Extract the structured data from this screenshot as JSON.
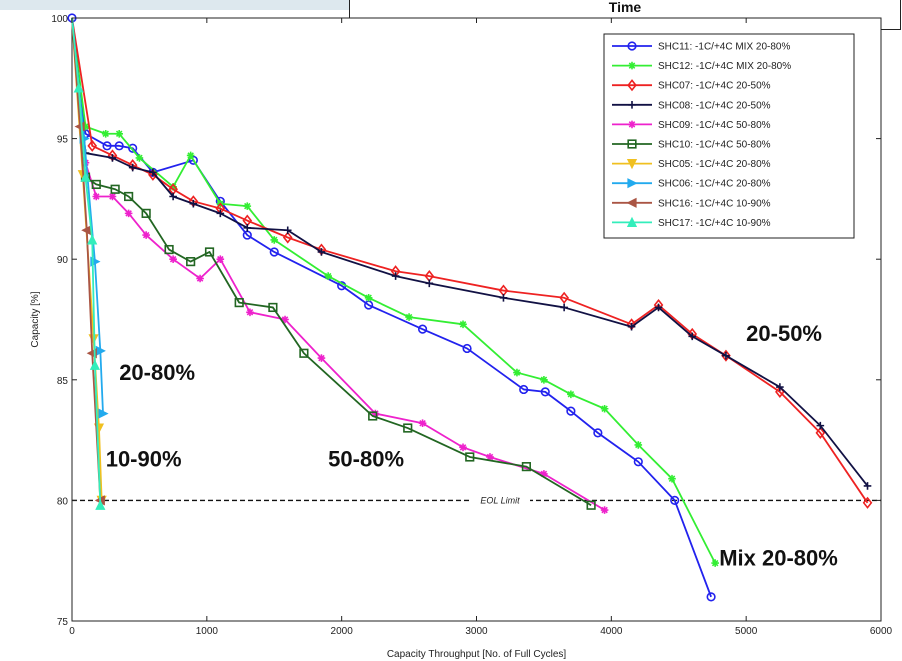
{
  "header": {
    "time_label": "Time"
  },
  "chart_data": {
    "type": "line",
    "title": "",
    "xlabel": "Capacity Throughput [No. of Full Cycles]",
    "ylabel": "Capacity [%]",
    "xlim": [
      0,
      6000
    ],
    "ylim": [
      75,
      100
    ],
    "xticks": [
      0,
      1000,
      2000,
      3000,
      4000,
      5000,
      6000
    ],
    "yticks": [
      75,
      80,
      85,
      90,
      95,
      100
    ],
    "legend_position": "top-right",
    "eol_limit": {
      "value": 80,
      "label": "EOL Limit"
    },
    "annotations": [
      {
        "text": "20-80%",
        "x": 350,
        "y": 85
      },
      {
        "text": "10-90%",
        "x": 250,
        "y": 81.4
      },
      {
        "text": "50-80%",
        "x": 1900,
        "y": 81.4
      },
      {
        "text": "20-50%",
        "x": 5000,
        "y": 86.6
      },
      {
        "text": "Mix 20-80%",
        "x": 4800,
        "y": 77.3
      }
    ],
    "series": [
      {
        "name": "SHC11: -1C/+4C MIX 20-80%",
        "color": "#2222ee",
        "marker": "circle",
        "x": [
          0,
          100,
          260,
          350,
          450,
          600,
          900,
          1100,
          1300,
          1500,
          2000,
          2200,
          2600,
          2930,
          3350,
          3510,
          3700,
          3900,
          4200,
          4470,
          4740
        ],
        "y": [
          100,
          95.2,
          94.7,
          94.7,
          94.6,
          93.6,
          94.1,
          92.4,
          91.0,
          90.3,
          88.9,
          88.1,
          87.1,
          86.3,
          84.6,
          84.5,
          83.7,
          82.8,
          81.6,
          80.0,
          76.0
        ]
      },
      {
        "name": "SHC12: -1C/+4C MIX 20-80%",
        "color": "#33ee33",
        "marker": "star",
        "x": [
          0,
          100,
          250,
          350,
          500,
          750,
          880,
          1100,
          1300,
          1500,
          1900,
          2200,
          2500,
          2900,
          3300,
          3500,
          3700,
          3950,
          4200,
          4450,
          4770
        ],
        "y": [
          100,
          95.5,
          95.2,
          95.2,
          94.2,
          93.0,
          94.3,
          92.3,
          92.2,
          90.8,
          89.3,
          88.4,
          87.6,
          87.3,
          85.3,
          85.0,
          84.4,
          83.8,
          82.3,
          80.9,
          77.4
        ]
      },
      {
        "name": "SHC07: -1C/+4C 20-50%",
        "color": "#ee2222",
        "marker": "diamond",
        "x": [
          0,
          150,
          300,
          450,
          600,
          750,
          900,
          1100,
          1300,
          1600,
          1850,
          2400,
          2650,
          3200,
          3650,
          4150,
          4350,
          4600,
          4850,
          5250,
          5550,
          5900
        ],
        "y": [
          100,
          94.7,
          94.3,
          93.9,
          93.5,
          92.9,
          92.4,
          92.1,
          91.6,
          90.9,
          90.4,
          89.5,
          89.3,
          88.7,
          88.4,
          87.3,
          88.1,
          86.9,
          86.0,
          84.5,
          82.8,
          79.9
        ]
      },
      {
        "name": "SHC08: -1C/+4C 20-50%",
        "color": "#111144",
        "marker": "plus",
        "x": [
          0,
          100,
          300,
          450,
          600,
          750,
          900,
          1100,
          1300,
          1600,
          1850,
          2400,
          2650,
          3200,
          3650,
          4150,
          4350,
          4600,
          4850,
          5250,
          5550,
          5900
        ],
        "y": [
          100,
          94.4,
          94.2,
          93.8,
          93.6,
          92.6,
          92.3,
          91.9,
          91.3,
          91.2,
          90.3,
          89.3,
          89.0,
          88.4,
          88.0,
          87.2,
          88.0,
          86.8,
          86.0,
          84.7,
          83.1,
          80.6
        ]
      },
      {
        "name": "SHC09: -1C/+4C 50-80%",
        "color": "#ee22cc",
        "marker": "star",
        "x": [
          0,
          100,
          180,
          300,
          420,
          550,
          750,
          950,
          1100,
          1320,
          1580,
          1850,
          2250,
          2600,
          2900,
          3100,
          3500,
          3950
        ],
        "y": [
          100,
          94.0,
          92.6,
          92.6,
          91.9,
          91.0,
          90.0,
          89.2,
          90.0,
          87.8,
          87.5,
          85.9,
          83.6,
          83.2,
          82.2,
          81.8,
          81.1,
          79.6
        ]
      },
      {
        "name": "SHC10: -1C/+4C 50-80%",
        "color": "#226622",
        "marker": "square",
        "x": [
          0,
          100,
          180,
          320,
          420,
          550,
          720,
          880,
          1020,
          1240,
          1490,
          1720,
          2230,
          2490,
          2950,
          3370,
          3850
        ],
        "y": [
          100,
          93.4,
          93.1,
          92.9,
          92.6,
          91.9,
          90.4,
          89.9,
          90.3,
          88.2,
          88.0,
          86.1,
          83.5,
          83.0,
          81.8,
          81.4,
          79.8
        ]
      },
      {
        "name": "SHC05: -1C/+4C 20-80%",
        "color": "#f0c020",
        "marker": "triangle-down",
        "x": [
          0,
          80,
          160,
          200,
          220
        ],
        "y": [
          100,
          93.5,
          86.7,
          83.0,
          80.0
        ]
      },
      {
        "name": "SHC06: -1C/+4C 20-80%",
        "color": "#22aaee",
        "marker": "triangle-right",
        "x": [
          0,
          90,
          170,
          210,
          230
        ],
        "y": [
          100,
          95.0,
          89.9,
          86.2,
          83.6
        ]
      },
      {
        "name": "SHC16: -1C/+4C 10-90%",
        "color": "#aa5544",
        "marker": "triangle-left",
        "x": [
          0,
          60,
          110,
          150,
          210
        ],
        "y": [
          100,
          95.5,
          91.2,
          86.1,
          80.0
        ]
      },
      {
        "name": "SHC17: -1C/+4C 10-90%",
        "color": "#33eebb",
        "marker": "triangle-up",
        "x": [
          0,
          50,
          100,
          150,
          170,
          210
        ],
        "y": [
          100,
          97.1,
          93.4,
          90.8,
          85.6,
          79.8
        ]
      }
    ]
  }
}
